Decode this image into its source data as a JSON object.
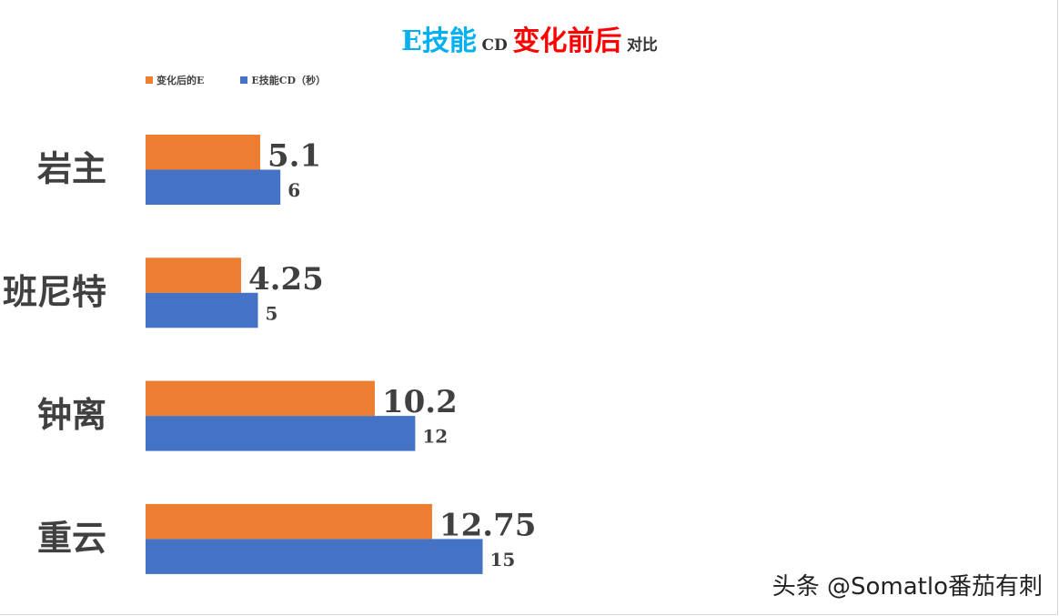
{
  "colors": {
    "after": "#ED7D31",
    "before": "#4472C4",
    "title_e": "#00B0F0",
    "title_change": "#FF0000",
    "text": "#404040"
  },
  "title": {
    "part1": "E技能",
    "part2": "CD",
    "part3": "变化前后",
    "part4": "对比"
  },
  "chart_data": {
    "type": "bar",
    "orientation": "horizontal",
    "categories": [
      "岩主",
      "班尼特",
      "钟离",
      "重云"
    ],
    "series": [
      {
        "name": "变化后的E",
        "values": [
          5.1,
          4.25,
          10.2,
          12.75
        ],
        "color": "#ED7D31"
      },
      {
        "name": "E技能CD（秒）",
        "values": [
          6,
          5,
          12,
          15
        ],
        "color": "#4472C4"
      }
    ],
    "title": "E技能 CD 变化前后 对比",
    "legend_position": "top-left",
    "grid": false
  },
  "watermark": "头条 @Somatlo番茄有刺"
}
